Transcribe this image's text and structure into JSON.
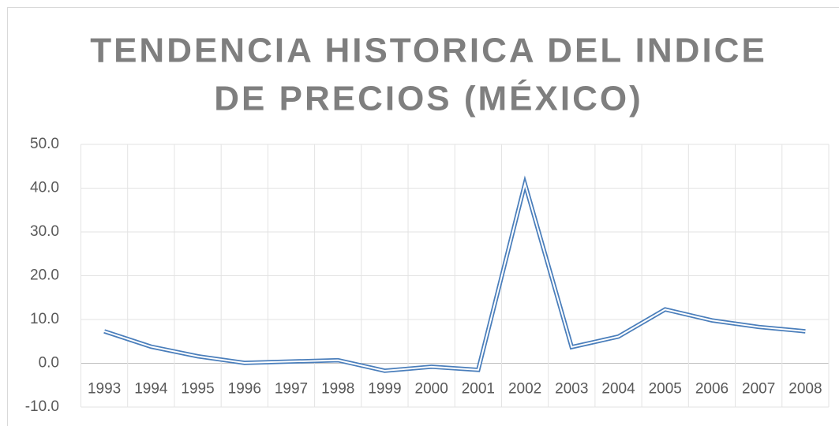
{
  "chart_data": {
    "type": "line",
    "title": [
      "TENDENCIA HISTORICA DEL INDICE",
      "DE PRECIOS (MÉXICO)"
    ],
    "categories": [
      "1993",
      "1994",
      "1995",
      "1996",
      "1997",
      "1998",
      "1999",
      "2000",
      "2001",
      "2002",
      "2003",
      "2004",
      "2005",
      "2006",
      "2007",
      "2008"
    ],
    "series": [
      {
        "name": "Indice de precios",
        "color": "#4a7ebb",
        "values": [
          7.3,
          3.8,
          1.6,
          0.1,
          0.4,
          0.7,
          -1.7,
          -0.8,
          -1.5,
          41.0,
          3.7,
          6.1,
          12.3,
          9.8,
          8.3,
          7.3
        ]
      }
    ],
    "ylim": [
      -10,
      50
    ],
    "yticks": [
      {
        "value": -10,
        "label": "-10.0"
      },
      {
        "value": 0,
        "label": "0.0"
      },
      {
        "value": 10,
        "label": "10.0"
      },
      {
        "value": 20,
        "label": "20.0"
      },
      {
        "value": 30,
        "label": "30.0"
      },
      {
        "value": 40,
        "label": "40.0"
      },
      {
        "value": 50,
        "label": "50.0"
      }
    ],
    "grid": true
  }
}
